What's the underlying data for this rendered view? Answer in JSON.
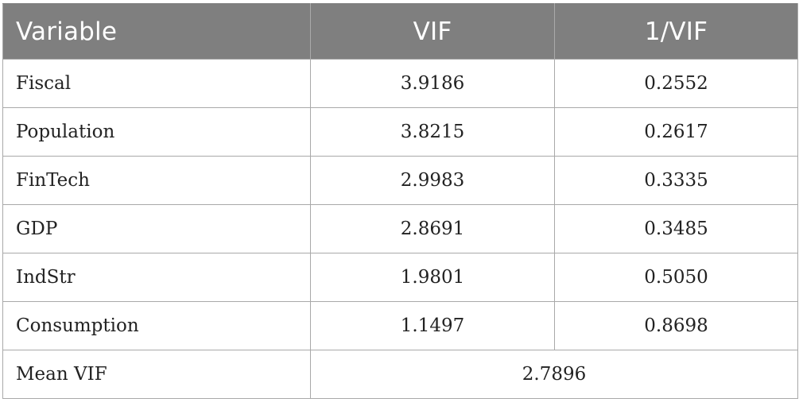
{
  "header": {
    "variable": "Variable",
    "vif": "VIF",
    "inv_vif": "1/VIF"
  },
  "rows": [
    {
      "variable": "Fiscal",
      "vif": "3.9186",
      "inv_vif": "0.2552"
    },
    {
      "variable": "Population",
      "vif": "3.8215",
      "inv_vif": "0.2617"
    },
    {
      "variable": "FinTech",
      "vif": "2.9983",
      "inv_vif": "0.3335"
    },
    {
      "variable": "GDP",
      "vif": "2.8691",
      "inv_vif": "0.3485"
    },
    {
      "variable": "IndStr",
      "vif": "1.9801",
      "inv_vif": "0.5050"
    },
    {
      "variable": "Consumption",
      "vif": "1.1497",
      "inv_vif": "0.8698"
    }
  ],
  "footer": {
    "label": "Mean VIF",
    "value": "2.7896"
  },
  "colors": {
    "header_bg": "#7f7f7f",
    "header_text": "#ffffff",
    "border": "#a9a9a9"
  }
}
